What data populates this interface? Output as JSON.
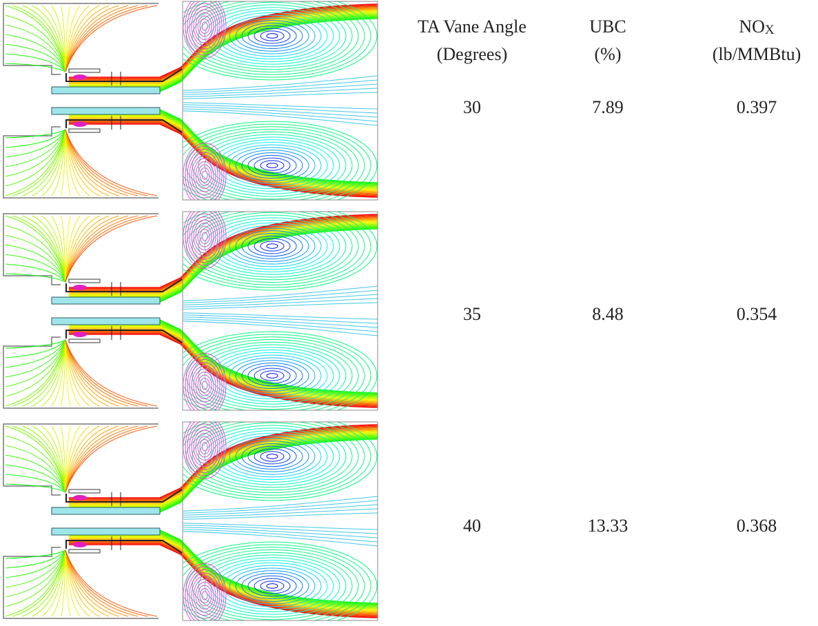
{
  "table": {
    "columns": [
      {
        "label": "TA Vane Angle",
        "unit": "(Degrees)"
      },
      {
        "label": "UBC",
        "unit": "(%)"
      },
      {
        "label": "NO",
        "label_subscript": "X",
        "unit": "(lb/MMBtu)"
      }
    ],
    "rows": [
      [
        "30",
        "7.89",
        "0.397"
      ],
      [
        "35",
        "8.48",
        "0.354"
      ],
      [
        "40",
        "13.33",
        "0.368"
      ]
    ]
  }
}
